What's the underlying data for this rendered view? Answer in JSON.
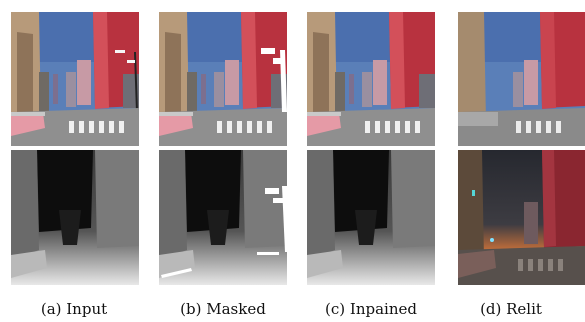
{
  "figure": {
    "captions": [
      "(a) Input",
      "(b) Masked",
      "(c) Inpained",
      "(d) Relit"
    ],
    "colors": {
      "sky": "#5a7fb8",
      "building_red": "#b8323f",
      "building_beige": "#b79a7a",
      "road": "#8f8f8f",
      "crosswalk": "#f0f0f0",
      "rail_pink": "#e59aa6",
      "mask": "#ffffff",
      "relit_sky": "#2f3340",
      "relit_glow": "#e07a3a"
    }
  }
}
